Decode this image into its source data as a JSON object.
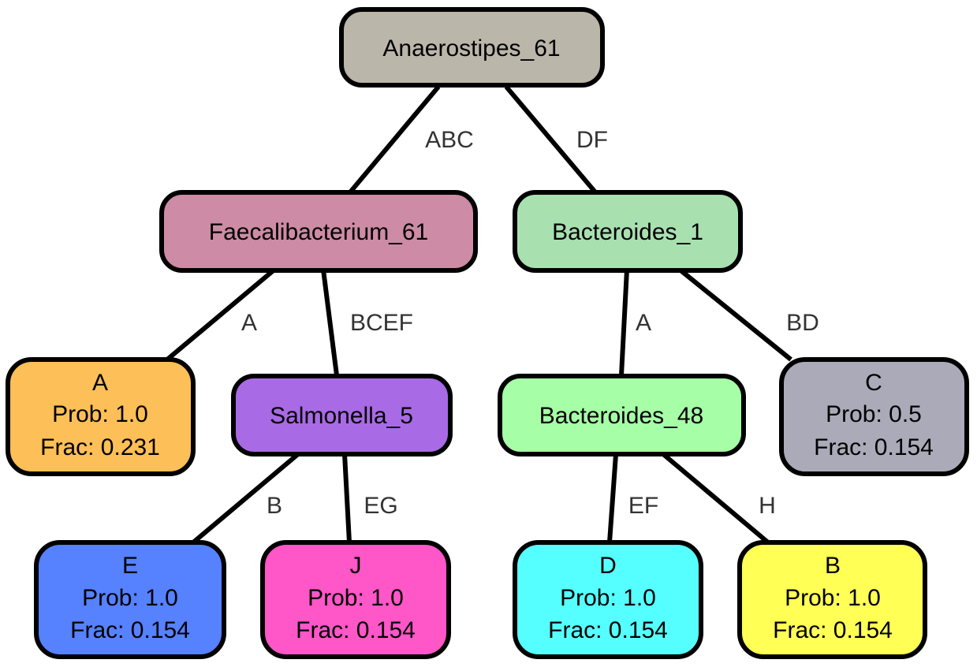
{
  "nodes": {
    "root": {
      "title": "Anaerostipes_61",
      "fill": "#bbb6aa"
    },
    "faecal": {
      "title": "Faecalibacterium_61",
      "fill": "#cd8ba5"
    },
    "bact1": {
      "title": "Bacteroides_1",
      "fill": "#a8e0b0"
    },
    "leafA": {
      "title": "A",
      "prob": "Prob: 1.0",
      "frac": "Frac: 0.231",
      "fill": "#fdbf57"
    },
    "salm": {
      "title": "Salmonella_5",
      "fill": "#a96ae6"
    },
    "bact48": {
      "title": "Bacteroides_48",
      "fill": "#a6ffa6"
    },
    "leafC": {
      "title": "C",
      "prob": "Prob: 0.5",
      "frac": "Frac: 0.154",
      "fill": "#aaaab8"
    },
    "leafE": {
      "title": "E",
      "prob": "Prob: 1.0",
      "frac": "Frac: 0.154",
      "fill": "#5681ff"
    },
    "leafJ": {
      "title": "J",
      "prob": "Prob: 1.0",
      "frac": "Frac: 0.154",
      "fill": "#ff56c8"
    },
    "leafD": {
      "title": "D",
      "prob": "Prob: 1.0",
      "frac": "Frac: 0.154",
      "fill": "#56ffff"
    },
    "leafB": {
      "title": "B",
      "prob": "Prob: 1.0",
      "frac": "Frac: 0.154",
      "fill": "#ffff56"
    }
  },
  "edges": {
    "root_faecal": "ABC",
    "root_bact1": "DF",
    "faecal_leafA": "A",
    "faecal_salm": "BCEF",
    "bact1_bact48": "A",
    "bact1_leafC": "BD",
    "salm_leafE": "B",
    "salm_leafJ": "EG",
    "bact48_leafD": "EF",
    "bact48_leafB": "H"
  }
}
